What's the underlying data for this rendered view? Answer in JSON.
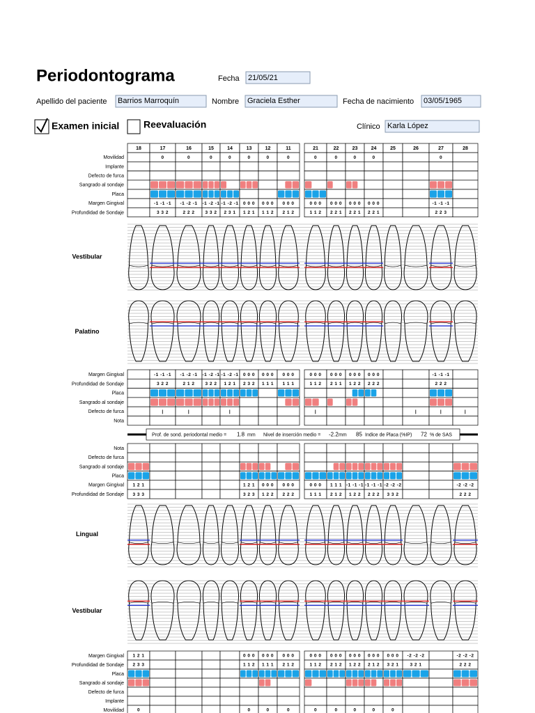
{
  "header": {
    "title": "Periodontograma",
    "date_label": "Fecha",
    "date": "21/05/21",
    "surname_label": "Apellido del paciente",
    "surname": "Barrios Marroquín",
    "name_label": "Nombre",
    "name": "Graciela Esther",
    "birth_label": "Fecha de nacimiento",
    "birth": "03/05/1965",
    "exam_initial": "Examen inicial",
    "reevaluation": "Reevaluación",
    "clinician_label": "Clínico",
    "clinician": "Karla López"
  },
  "teeth_upper": [
    "18",
    "17",
    "16",
    "15",
    "14",
    "13",
    "12",
    "11",
    "21",
    "22",
    "23",
    "24",
    "25",
    "26",
    "27",
    "28"
  ],
  "upper_buccal": {
    "rows": [
      {
        "label": "Movilidad",
        "cells": [
          null,
          "0",
          "0",
          "0",
          "0",
          "0",
          "0",
          "0",
          "0",
          "0",
          "0",
          "0",
          null,
          null,
          "0",
          null
        ]
      },
      {
        "label": "Implante"
      },
      {
        "label": "Defecto de furca"
      },
      {
        "label": "Sangrado al sondaje",
        "color": "#f07f7f",
        "marks": [
          null,
          [
            1,
            1,
            1
          ],
          [
            1,
            1,
            1
          ],
          [
            1,
            1,
            1
          ],
          [
            1,
            0,
            0
          ],
          [
            1,
            1,
            1
          ],
          null,
          [
            0,
            1,
            1
          ],
          [
            1,
            0,
            0
          ],
          [
            1,
            0,
            0
          ],
          [
            1,
            1,
            0
          ],
          null,
          null,
          null,
          [
            1,
            1,
            1
          ],
          null
        ]
      },
      {
        "label": "Placa",
        "color": "#1aa3e8",
        "marks": [
          null,
          [
            1,
            1,
            1
          ],
          [
            1,
            1,
            1
          ],
          [
            1,
            1,
            1
          ],
          [
            1,
            1,
            1
          ],
          null,
          null,
          [
            1,
            1,
            1
          ],
          [
            1,
            1,
            1
          ],
          null,
          null,
          null,
          null,
          null,
          [
            1,
            1,
            1
          ],
          null
        ]
      },
      {
        "label": "Margen Gingival",
        "cells": [
          null,
          "-1 -1 -1",
          "-1 -2 -1",
          "-1 -2 -1",
          "-1 -2 -1",
          "0 0 0",
          "0 0 0",
          "0 0 0",
          "0 0 0",
          "0 0 0",
          "0 0 0",
          "0 0 0",
          null,
          null,
          "-1 -1 -1",
          null
        ]
      },
      {
        "label": "Profundidad de Sondaje",
        "cells": [
          null,
          "3 3 2",
          "2 2 2",
          "3 3 2",
          "2 3 1",
          "1 2 1",
          "1 1 2",
          "2 1 2",
          "1 1 2",
          "2 2 1",
          "2 2 1",
          "2 2 1",
          null,
          null,
          "2 2 3",
          null
        ]
      }
    ]
  },
  "upper_buccal_label": "Vestibular",
  "upper_palatal_label": "Palatino",
  "upper_palatal": {
    "rows": [
      {
        "label": "Margen Gingival",
        "cells": [
          null,
          "-1 -1 -1",
          "-1 -2 -1",
          "-1 -2 -1",
          "-1 -2 -1",
          "0 0 0",
          "0 0 0",
          "0 0 0",
          "0 0 0",
          "0 0 0",
          "0 0 0",
          "0 0 0",
          null,
          null,
          "-1 -1 -1",
          null
        ]
      },
      {
        "label": "Profundidad de Sondaje",
        "cells": [
          null,
          "3 2 2",
          "2 1 2",
          "3 2 2",
          "1 2 1",
          "2 3 2",
          "1 1 1",
          "1 1 1",
          "1 1 2",
          "2 1 1",
          "1 2 2",
          "2 2 2",
          null,
          null,
          "2 2 2",
          null
        ]
      },
      {
        "label": "Placa",
        "color": "#1aa3e8",
        "marks": [
          null,
          [
            1,
            1,
            1
          ],
          [
            1,
            1,
            1
          ],
          [
            1,
            1,
            1
          ],
          [
            1,
            1,
            1
          ],
          [
            1,
            1,
            1
          ],
          null,
          [
            1,
            1,
            1
          ],
          null,
          null,
          [
            0,
            1,
            1
          ],
          [
            1,
            1,
            0
          ],
          null,
          null,
          [
            1,
            1,
            1
          ],
          null
        ]
      },
      {
        "label": "Sangrado al sondaje",
        "color": "#f07f7f",
        "marks": [
          null,
          [
            1,
            1,
            1
          ],
          [
            1,
            1,
            1
          ],
          [
            1,
            1,
            1
          ],
          [
            1,
            1,
            1
          ],
          null,
          null,
          [
            0,
            1,
            1
          ],
          [
            1,
            1,
            0
          ],
          [
            1,
            0,
            0
          ],
          [
            1,
            1,
            0
          ],
          null,
          null,
          null,
          [
            1,
            1,
            1
          ],
          null
        ]
      },
      {
        "label": "Defecto de furca",
        "cells": [
          null,
          "|",
          "|",
          null,
          "|",
          null,
          null,
          null,
          "|",
          null,
          null,
          null,
          null,
          "|",
          "|",
          "|"
        ]
      },
      {
        "label": "Nota"
      }
    ]
  },
  "summary": {
    "probing_label": "Prof. de sond. periodontal medio =",
    "probing": "1.8",
    "probing_unit": "mm",
    "attachment_label": "Nivel de inserción medio =",
    "attachment": "-2.2",
    "attachment_unit": "mm",
    "plaque": "85",
    "plaque_label": "Indice de Placa (%IP)",
    "bleeding": "72",
    "bleeding_label": "% de SAS"
  },
  "lower_lingual": {
    "rows": [
      {
        "label": "Nota"
      },
      {
        "label": "Defecto de furca"
      },
      {
        "label": "Sangrado al sondaje",
        "color": "#f07f7f",
        "marks": [
          [
            1,
            1,
            1
          ],
          null,
          null,
          null,
          null,
          [
            1,
            1,
            1
          ],
          [
            1,
            1,
            0
          ],
          [
            0,
            1,
            1
          ],
          null,
          [
            0,
            1,
            1
          ],
          [
            1,
            1,
            1
          ],
          [
            1,
            1,
            1
          ],
          [
            1,
            1,
            1
          ],
          null,
          null,
          [
            1,
            1,
            1
          ]
        ]
      },
      {
        "label": "Placa",
        "color": "#1aa3e8",
        "marks": [
          [
            1,
            1,
            1
          ],
          null,
          null,
          null,
          null,
          [
            1,
            1,
            1
          ],
          [
            1,
            1,
            1
          ],
          [
            1,
            1,
            1
          ],
          [
            1,
            1,
            1
          ],
          [
            1,
            1,
            1
          ],
          [
            1,
            1,
            1
          ],
          [
            1,
            1,
            1
          ],
          [
            1,
            1,
            1
          ],
          null,
          null,
          [
            1,
            1,
            1
          ]
        ]
      },
      {
        "label": "Margen Gingival",
        "cells": [
          "1 2 1",
          null,
          null,
          null,
          null,
          "1 2 1",
          "0 0 0",
          "0 0 0",
          "0 0 0",
          "1 1 1",
          "-1 -1 -1",
          "-1 -1 -1",
          "-2 -2 -2",
          null,
          null,
          "-2 -2 -2"
        ]
      },
      {
        "label": "Profundidad de Sondaje",
        "cells": [
          "3 3 3",
          null,
          null,
          null,
          null,
          "3 2 3",
          "1 2 2",
          "2 2 2",
          "1 1 1",
          "2 1 2",
          "1 2 2",
          "2 2 2",
          "3 3 2",
          null,
          null,
          "2 2 2"
        ]
      }
    ]
  },
  "lower_lingual_label": "Lingual",
  "lower_buccal_label": "Vestibular",
  "lower_buccal": {
    "rows": [
      {
        "label": "Margen Gingival",
        "cells": [
          "1 2 1",
          null,
          null,
          null,
          null,
          "0 0 0",
          "0 0 0",
          "0 0 0",
          "0 0 0",
          "0 0 0",
          "0 0 0",
          "0 0 0",
          "0 0 0",
          "-2 -2 -2",
          null,
          "-2 -2 -2"
        ]
      },
      {
        "label": "Profundidad de Sondaje",
        "cells": [
          "2 3 3",
          null,
          null,
          null,
          null,
          "1 1 2",
          "1 1 1",
          "2 1 2",
          "1 1 2",
          "2 1 2",
          "1 2 2",
          "2 1 2",
          "3 2 1",
          "3 2 1",
          null,
          "2 2 2"
        ]
      },
      {
        "label": "Placa",
        "color": "#1aa3e8",
        "marks": [
          [
            1,
            1,
            1
          ],
          null,
          null,
          null,
          null,
          [
            1,
            1,
            1
          ],
          [
            1,
            1,
            1
          ],
          [
            1,
            1,
            1
          ],
          [
            1,
            1,
            1
          ],
          [
            1,
            1,
            1
          ],
          [
            1,
            1,
            1
          ],
          [
            1,
            1,
            1
          ],
          [
            1,
            1,
            1
          ],
          [
            1,
            1,
            1
          ],
          null,
          [
            1,
            1,
            1
          ]
        ]
      },
      {
        "label": "Sangrado al sondaje",
        "color": "#f07f7f",
        "marks": [
          [
            1,
            1,
            1
          ],
          null,
          null,
          null,
          null,
          null,
          [
            1,
            1,
            0
          ],
          null,
          [
            1,
            0,
            0
          ],
          null,
          [
            1,
            1,
            1
          ],
          [
            1,
            1,
            0
          ],
          [
            1,
            1,
            1
          ],
          null,
          null,
          [
            1,
            1,
            1
          ]
        ]
      },
      {
        "label": "Defecto de furca"
      },
      {
        "label": "Implante"
      },
      {
        "label": "Movilidad",
        "cells": [
          "0",
          null,
          null,
          null,
          null,
          "0",
          "0",
          "0",
          "0",
          "0",
          "0",
          "0",
          "0",
          null,
          null,
          null
        ]
      }
    ]
  }
}
